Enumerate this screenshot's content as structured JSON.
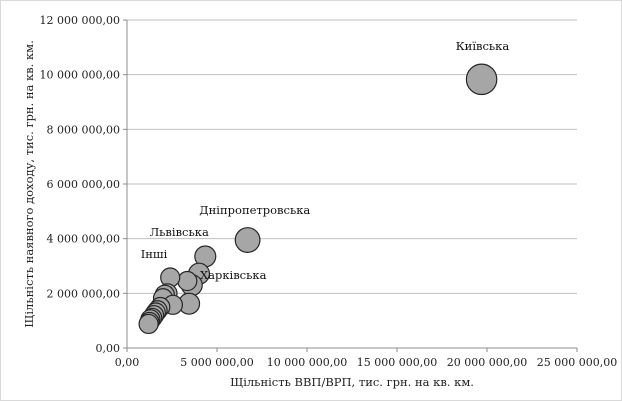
{
  "chart_data": {
    "type": "scatter",
    "title": "",
    "xlabel": "Щільність ВВП/ВРП, тис. грн. на кв. км.",
    "ylabel": "Щільність наявного доходу, тис. грн. на кв. км.",
    "xlim": [
      0,
      25000000
    ],
    "ylim": [
      0,
      12000000
    ],
    "x_ticks": [
      0,
      5000000,
      10000000,
      15000000,
      20000000,
      25000000
    ],
    "x_tick_labels": [
      "0,00",
      "5 000 000,00",
      "10 000 000,00",
      "15 000 000,00",
      "20 000 000,00",
      "25 000 000,00"
    ],
    "y_ticks": [
      0,
      2000000,
      4000000,
      6000000,
      8000000,
      10000000,
      12000000
    ],
    "y_tick_labels": [
      "0,00",
      "2 000 000,00",
      "4 000 000,00",
      "6 000 000,00",
      "8 000 000,00",
      "10 000 000,00",
      "12 000 000,00"
    ],
    "grid": "horizontal",
    "marker_color": "#a6a6a6",
    "marker_edge_color": "#262626",
    "points": [
      {
        "x": 19700000,
        "y": 9830000,
        "size": 1.6
      },
      {
        "x": 6700000,
        "y": 3950000,
        "size": 1.3
      },
      {
        "x": 4350000,
        "y": 3350000,
        "size": 1.1
      },
      {
        "x": 4000000,
        "y": 2720000,
        "size": 1.1
      },
      {
        "x": 3600000,
        "y": 2300000,
        "size": 1.1
      },
      {
        "x": 3350000,
        "y": 2450000,
        "size": 1.0
      },
      {
        "x": 3450000,
        "y": 1620000,
        "size": 1.1
      },
      {
        "x": 2400000,
        "y": 2580000,
        "size": 1.0
      },
      {
        "x": 2250000,
        "y": 2000000,
        "size": 1.0
      },
      {
        "x": 2100000,
        "y": 1950000,
        "size": 1.0
      },
      {
        "x": 2000000,
        "y": 1820000,
        "size": 1.0
      },
      {
        "x": 2550000,
        "y": 1580000,
        "size": 1.0
      },
      {
        "x": 1850000,
        "y": 1500000,
        "size": 1.0
      },
      {
        "x": 1700000,
        "y": 1380000,
        "size": 1.0
      },
      {
        "x": 1600000,
        "y": 1300000,
        "size": 1.0
      },
      {
        "x": 1500000,
        "y": 1200000,
        "size": 1.0
      },
      {
        "x": 1400000,
        "y": 1100000,
        "size": 1.0
      },
      {
        "x": 1300000,
        "y": 1050000,
        "size": 1.0
      },
      {
        "x": 1250000,
        "y": 950000,
        "size": 1.0
      },
      {
        "x": 1200000,
        "y": 880000,
        "size": 1.0
      }
    ],
    "annotations": [
      {
        "text": "Київська",
        "x": 19750000,
        "y": 10900000
      },
      {
        "text": "Дніпропетровська",
        "x": 7100000,
        "y": 4900000
      },
      {
        "text": "Львівська",
        "x": 2900000,
        "y": 4100000
      },
      {
        "text": "Харківська",
        "x": 5900000,
        "y": 2520000
      },
      {
        "text": "Інші",
        "x": 1500000,
        "y": 3300000
      }
    ]
  }
}
